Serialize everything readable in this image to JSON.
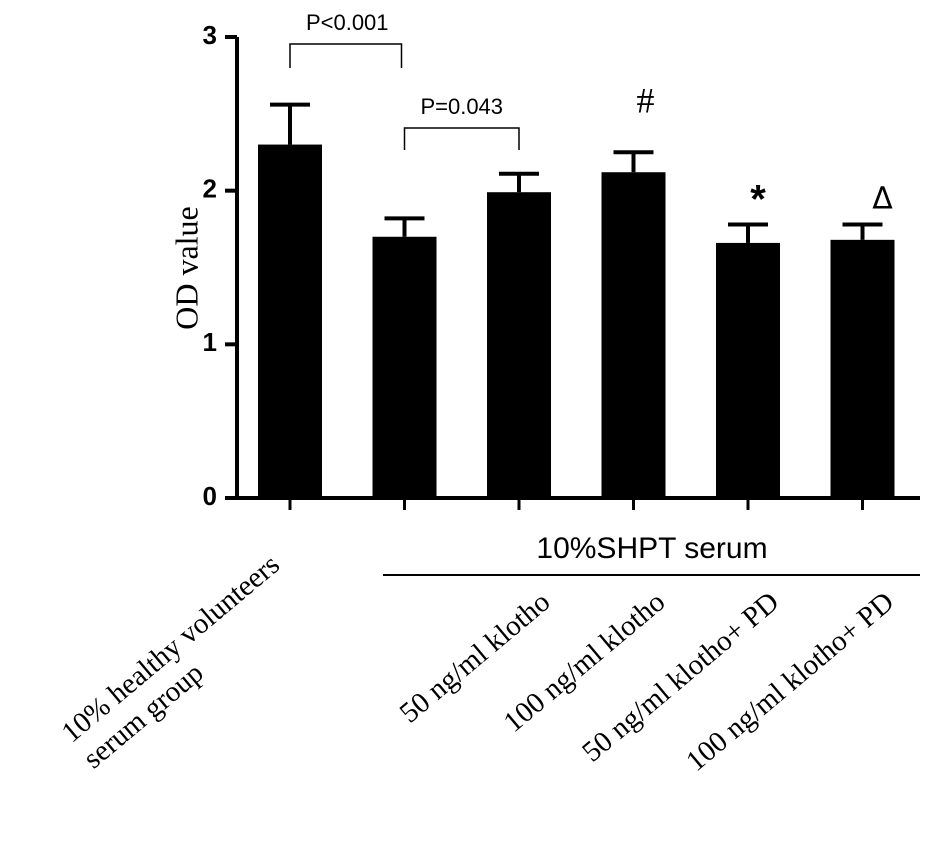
{
  "chart_data": {
    "type": "bar",
    "y_label": "OD value",
    "categories": [
      "10% healthy volunteers serum group",
      null,
      "50 ng/ml klotho",
      "100 ng/ml klotho",
      "50 ng/ml klotho+ PD",
      "100 ng/ml klotho+ PD"
    ],
    "values": [
      2.3,
      1.7,
      1.99,
      2.12,
      1.66,
      1.68
    ],
    "errors": [
      0.26,
      0.12,
      0.12,
      0.13,
      0.12,
      0.1
    ],
    "color": "#000000",
    "ylim": [
      0,
      3
    ],
    "yticks": [
      0,
      1,
      2,
      3
    ],
    "group_label": "10%SHPT serum",
    "annotations": [
      "P<0.001",
      "P=0.043",
      "#",
      "*",
      "Δ"
    ]
  }
}
